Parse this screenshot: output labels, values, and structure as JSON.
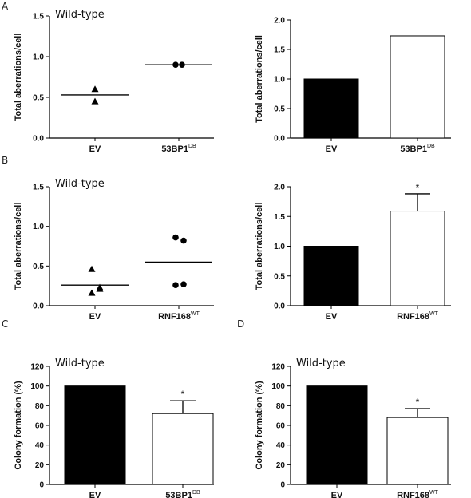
{
  "panels": [
    "A",
    "B",
    "C",
    "D"
  ],
  "chart_data": [
    {
      "type": "scatter",
      "panel": "A",
      "title": "Wild-type",
      "ylabel": "Total aberrations/cell",
      "ylim": [
        0,
        1.5
      ],
      "yticks": [
        "0.0",
        "0.5",
        "1.0",
        "1.5"
      ],
      "categories": [
        "EV",
        "53BP1"
      ],
      "category_superscripts": [
        "",
        "DB"
      ],
      "points": [
        {
          "category": "EV",
          "values": [
            0.6,
            0.45
          ],
          "marker": "triangle"
        },
        {
          "category": "53BP1",
          "values": [
            0.9,
            0.9
          ],
          "marker": "circle"
        }
      ],
      "means": [
        0.53,
        0.9
      ]
    },
    {
      "type": "bar",
      "panel": "A",
      "title": "",
      "ylabel": "Total aberrations/cell",
      "ylim": [
        0,
        2.0
      ],
      "yticks": [
        "0.0",
        "0.5",
        "1.0",
        "1.5",
        "2.0"
      ],
      "categories": [
        "EV",
        "53BP1"
      ],
      "category_superscripts": [
        "",
        "DB"
      ],
      "values": [
        1.0,
        1.73
      ],
      "fills": [
        "#000000",
        "#ffffff"
      ],
      "errors": [
        null,
        null
      ],
      "significance": [
        "",
        ""
      ]
    },
    {
      "type": "scatter",
      "panel": "B",
      "title": "Wild-type",
      "ylabel": "Total aberrations/cell",
      "ylim": [
        0,
        1.5
      ],
      "yticks": [
        "0.0",
        "0.5",
        "1.0",
        "1.5"
      ],
      "categories": [
        "EV",
        "RNF168"
      ],
      "category_superscripts": [
        "",
        "WT"
      ],
      "points": [
        {
          "category": "EV",
          "values": [
            0.46,
            0.23,
            0.16,
            0.21
          ],
          "marker": "triangle"
        },
        {
          "category": "RNF168",
          "values": [
            0.86,
            0.82,
            0.26,
            0.27
          ],
          "marker": "circle"
        }
      ],
      "means": [
        0.26,
        0.55
      ]
    },
    {
      "type": "bar",
      "panel": "B",
      "title": "",
      "ylabel": "Total aberrations/cell",
      "ylim": [
        0,
        2.0
      ],
      "yticks": [
        "0.0",
        "0.5",
        "1.0",
        "1.5",
        "2.0"
      ],
      "categories": [
        "EV",
        "RNF168"
      ],
      "category_superscripts": [
        "",
        "WT"
      ],
      "values": [
        1.0,
        1.59
      ],
      "fills": [
        "#000000",
        "#ffffff"
      ],
      "errors": [
        null,
        0.29
      ],
      "significance": [
        "",
        "*"
      ]
    },
    {
      "type": "bar",
      "panel": "C",
      "title": "Wild-type",
      "ylabel": "Colony formation (%)",
      "ylim": [
        0,
        120
      ],
      "yticks": [
        "0",
        "20",
        "40",
        "60",
        "80",
        "100",
        "120"
      ],
      "categories": [
        "EV",
        "53BP1"
      ],
      "category_superscripts": [
        "",
        "DB"
      ],
      "values": [
        100,
        72
      ],
      "fills": [
        "#000000",
        "#ffffff"
      ],
      "errors": [
        null,
        13
      ],
      "significance": [
        "",
        "*"
      ]
    },
    {
      "type": "bar",
      "panel": "D",
      "title": "Wild-type",
      "ylabel": "Colony formation (%)",
      "ylim": [
        0,
        120
      ],
      "yticks": [
        "0",
        "20",
        "40",
        "60",
        "80",
        "100",
        "120"
      ],
      "categories": [
        "EV",
        "RNF168"
      ],
      "category_superscripts": [
        "",
        "WT"
      ],
      "values": [
        100,
        68
      ],
      "fills": [
        "#000000",
        "#ffffff"
      ],
      "errors": [
        null,
        9
      ],
      "significance": [
        "",
        "*"
      ]
    }
  ]
}
